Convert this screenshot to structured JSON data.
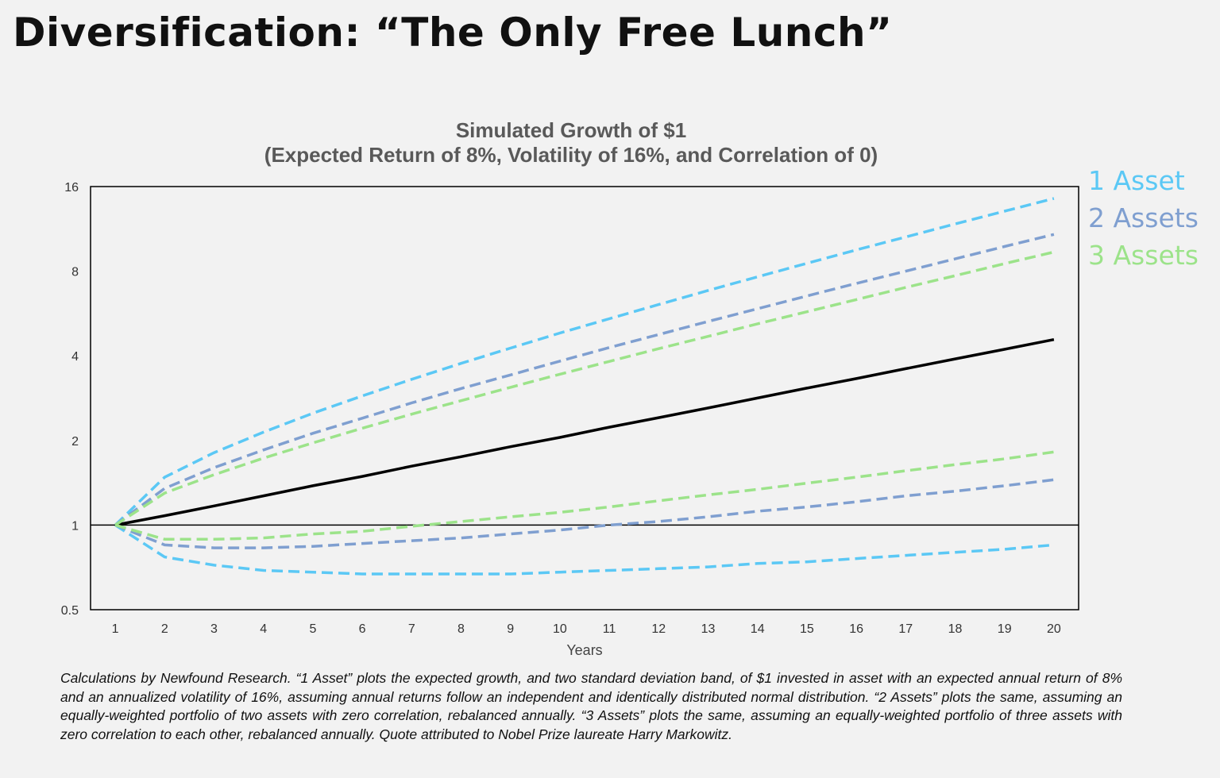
{
  "page_title": "Diversification: “The Only Free Lunch”",
  "footnote": "Calculations by Newfound Research.  “1 Asset” plots the expected growth, and two standard deviation band, of $1 invested in asset with an expected annual return of 8% and an annualized volatility of 16%, assuming annual returns follow an independent and identically distributed normal distribution.  “2 Assets” plots the same, assuming an equally-weighted portfolio of two assets with zero correlation, rebalanced annually.  “3 Assets” plots the same, assuming an equally-weighted portfolio of three assets with zero correlation to each other, rebalanced annually. Quote attributed to Nobel Prize laureate Harry Markowitz.",
  "chart_data": {
    "type": "line",
    "title": "Simulated Growth of $1",
    "subtitle": "(Expected Return of 8%, Volatility of 16%, and Correlation of 0)",
    "xlabel": "Years",
    "ylabel": "",
    "y_scale": "log2",
    "ylim": [
      0.5,
      16
    ],
    "xlim": [
      0.5,
      20.5
    ],
    "y_ticks": [
      "0.5",
      "1",
      "2",
      "4",
      "8",
      "16"
    ],
    "x": [
      1,
      2,
      3,
      4,
      5,
      6,
      7,
      8,
      9,
      10,
      11,
      12,
      13,
      14,
      15,
      16,
      17,
      18,
      19,
      20
    ],
    "grid": false,
    "legend_position": "right",
    "reference_line_y": 1,
    "legend": [
      {
        "label": "1 Asset",
        "color": "#5bc8f5"
      },
      {
        "label": "2 Assets",
        "color": "#7f9fd0"
      },
      {
        "label": "3 Assets",
        "color": "#9ce38a"
      }
    ],
    "series": [
      {
        "id": "expected",
        "color": "#000000",
        "dash": false,
        "values": [
          1,
          1.08,
          1.17,
          1.27,
          1.38,
          1.49,
          1.62,
          1.75,
          1.9,
          2.05,
          2.23,
          2.41,
          2.61,
          2.83,
          3.07,
          3.32,
          3.6,
          3.9,
          4.22,
          4.57
        ]
      },
      {
        "id": "1-asset-upper",
        "group": "1 Asset",
        "color": "#5bc8f5",
        "dash": true,
        "values": [
          1,
          1.48,
          1.81,
          2.14,
          2.5,
          2.88,
          3.3,
          3.76,
          4.26,
          4.82,
          5.42,
          6.09,
          6.83,
          7.64,
          8.53,
          9.52,
          10.59,
          11.78,
          13.08,
          14.51
        ]
      },
      {
        "id": "1-asset-lower",
        "group": "1 Asset",
        "color": "#5bc8f5",
        "dash": true,
        "values": [
          1,
          0.77,
          0.72,
          0.69,
          0.68,
          0.67,
          0.67,
          0.67,
          0.67,
          0.68,
          0.69,
          0.7,
          0.71,
          0.73,
          0.74,
          0.76,
          0.78,
          0.8,
          0.82,
          0.85
        ]
      },
      {
        "id": "2-assets-upper",
        "group": "2 Assets",
        "color": "#7f9fd0",
        "dash": true,
        "values": [
          1,
          1.35,
          1.6,
          1.85,
          2.12,
          2.4,
          2.72,
          3.06,
          3.42,
          3.83,
          4.28,
          4.76,
          5.3,
          5.88,
          6.53,
          7.24,
          8.0,
          8.85,
          9.79,
          10.81
        ]
      },
      {
        "id": "2-assets-lower",
        "group": "2 Assets",
        "color": "#7f9fd0",
        "dash": true,
        "values": [
          1,
          0.85,
          0.83,
          0.83,
          0.84,
          0.86,
          0.88,
          0.9,
          0.93,
          0.96,
          1.0,
          1.03,
          1.07,
          1.12,
          1.16,
          1.21,
          1.27,
          1.32,
          1.38,
          1.45
        ]
      },
      {
        "id": "3-assets-upper",
        "group": "3 Assets",
        "color": "#9ce38a",
        "dash": true,
        "values": [
          1,
          1.3,
          1.51,
          1.73,
          1.96,
          2.21,
          2.48,
          2.77,
          3.09,
          3.44,
          3.82,
          4.24,
          4.69,
          5.2,
          5.74,
          6.34,
          7.0,
          7.71,
          8.51,
          9.36
        ]
      },
      {
        "id": "3-assets-lower",
        "group": "3 Assets",
        "color": "#9ce38a",
        "dash": true,
        "values": [
          1,
          0.89,
          0.89,
          0.9,
          0.93,
          0.95,
          0.99,
          1.03,
          1.07,
          1.11,
          1.16,
          1.22,
          1.28,
          1.34,
          1.41,
          1.48,
          1.56,
          1.64,
          1.72,
          1.82
        ]
      }
    ]
  }
}
